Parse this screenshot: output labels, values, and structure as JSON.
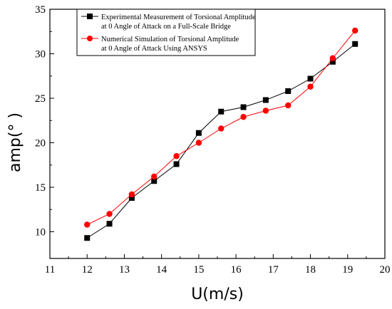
{
  "chart_data": {
    "type": "line",
    "xlabel": "U(m/s)",
    "ylabel": "amp(° )",
    "xlim": [
      11,
      20
    ],
    "ylim": [
      7,
      35
    ],
    "xticks": [
      11,
      12,
      13,
      14,
      15,
      16,
      17,
      18,
      19,
      20
    ],
    "yticks": [
      10,
      15,
      20,
      25,
      30,
      35
    ],
    "grid": false,
    "legend_position": "top-left",
    "series": [
      {
        "name_lines": [
          "Experimental Measurement of Torsional Amplitude",
          "at 0 Angle of Attack on a Full-Scale Bridge"
        ],
        "color": "#000000",
        "marker": "square",
        "x": [
          12,
          12.6,
          13.2,
          13.8,
          14.4,
          15,
          15.6,
          16.2,
          16.8,
          17.4,
          18,
          18.6,
          19.2
        ],
        "y": [
          9.3,
          10.9,
          13.8,
          15.7,
          17.6,
          21.1,
          23.5,
          24.0,
          24.8,
          25.8,
          27.2,
          29.1,
          31.1
        ]
      },
      {
        "name_lines": [
          "Numerical Simulation of Torsional Amplitude",
          "at 0 Angle of Attack Using ANSYS"
        ],
        "color": "#ff0000",
        "marker": "circle",
        "x": [
          12,
          12.6,
          13.2,
          13.8,
          14.4,
          15,
          15.6,
          16.2,
          16.8,
          17.4,
          18,
          18.6,
          19.2
        ],
        "y": [
          10.8,
          12.0,
          14.2,
          16.2,
          18.5,
          20.0,
          21.6,
          22.9,
          23.6,
          24.2,
          26.3,
          29.5,
          32.6
        ]
      }
    ]
  }
}
